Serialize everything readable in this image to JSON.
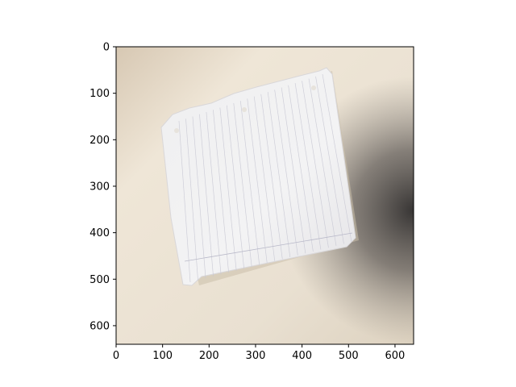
{
  "image": {
    "description_tag": "photo-of-torn-lined-paper",
    "background_colors": [
      "#efe7da",
      "#ddd3c2",
      "#4a4644"
    ],
    "paper_color": "#f2f1f1",
    "line_color": "#b8b8c6"
  },
  "axes": {
    "x_range": [
      0,
      640
    ],
    "y_range": [
      0,
      640
    ],
    "y_inverted": true,
    "x_ticks": [
      0,
      100,
      200,
      300,
      400,
      500,
      600
    ],
    "y_ticks": [
      0,
      100,
      200,
      300,
      400,
      500,
      600
    ],
    "x_tick_labels": [
      "0",
      "100",
      "200",
      "300",
      "400",
      "500",
      "600"
    ],
    "y_tick_labels": [
      "0",
      "100",
      "200",
      "300",
      "400",
      "500",
      "600"
    ]
  }
}
